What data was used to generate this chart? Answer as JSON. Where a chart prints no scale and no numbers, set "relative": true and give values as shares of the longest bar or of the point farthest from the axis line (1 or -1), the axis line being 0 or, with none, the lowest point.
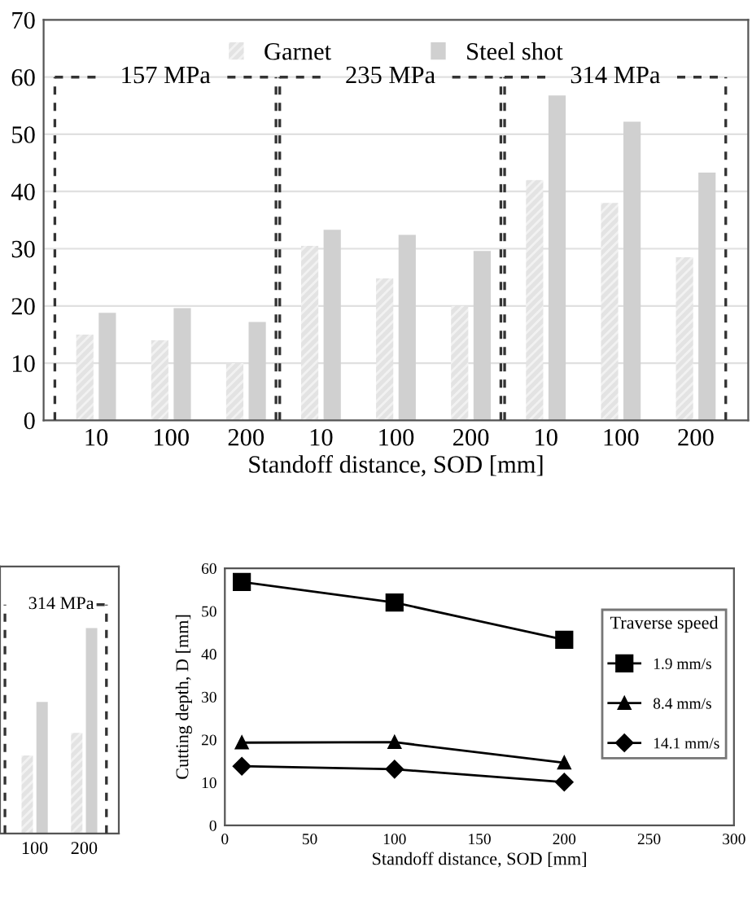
{
  "chart_data": [
    {
      "type": "bar",
      "xlabel": "Standoff distance, SOD [mm]",
      "categories": [
        "10",
        "100",
        "200",
        "10",
        "100",
        "200",
        "10",
        "100",
        "200"
      ],
      "series": [
        {
          "name": "Garnet",
          "color": "#e3e3e3",
          "values": [
            15,
            14,
            10,
            30.5,
            24.8,
            20,
            42,
            38,
            28.5
          ]
        },
        {
          "name": "Steel shot",
          "color": "#d0d0d0",
          "values": [
            18.8,
            19.6,
            17.2,
            33.3,
            32.4,
            29.6,
            56.8,
            52.2,
            43.3
          ]
        }
      ],
      "ylim": [
        0,
        70
      ],
      "yticks": [
        0,
        10,
        20,
        30,
        40,
        50,
        60,
        70
      ],
      "grid": "y",
      "legend": "top",
      "annotations": [
        "157 MPa",
        "235 MPa",
        "314 MPa"
      ]
    },
    {
      "type": "bar",
      "relative": true,
      "categories": [
        "100",
        "200"
      ],
      "tick_labels": "x",
      "series": [
        {
          "color": "#e3e3e3",
          "values": [
            0.38,
            0.49
          ]
        },
        {
          "color": "#d0d0d0",
          "values": [
            0.64,
            1
          ]
        }
      ],
      "annotations": [
        "314 MPa"
      ]
    },
    {
      "type": "line",
      "xlabel": "Standoff distance, SOD [mm]",
      "ylabel": "Cutting depth, D [mm]",
      "series": [
        {
          "name": "1.9 mm/s",
          "color": "#000000",
          "marker": "square",
          "x": [
            10,
            100,
            200
          ],
          "values": [
            56.8,
            52,
            43.3
          ]
        },
        {
          "name": "8.4 mm/s",
          "color": "#000000",
          "marker": "triangle",
          "x": [
            10,
            100,
            200
          ],
          "values": [
            19.3,
            19.4,
            14.6
          ]
        },
        {
          "name": "14.1 mm/s",
          "color": "#000000",
          "marker": "diamond",
          "x": [
            10,
            100,
            200
          ],
          "values": [
            13.8,
            13.1,
            10.1
          ]
        }
      ],
      "xlim": [
        0,
        300
      ],
      "xticks": [
        0,
        50,
        100,
        150,
        200,
        250,
        300
      ],
      "ylim": [
        0,
        60
      ],
      "yticks": [
        0,
        10,
        20,
        30,
        40,
        50,
        60
      ],
      "legend": "right",
      "legend_title": "Traverse speed",
      "line_style": "solid"
    }
  ]
}
